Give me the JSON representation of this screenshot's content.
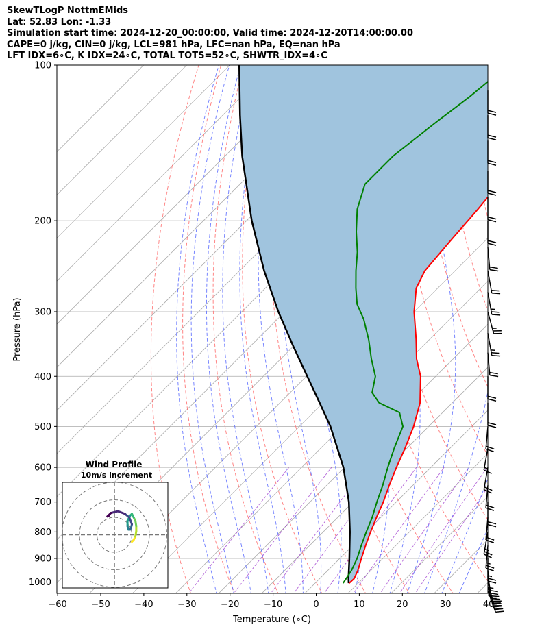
{
  "header": {
    "line1": "SkewTLogP NottmEMids",
    "line2": "Lat: 52.83   Lon: -1.33",
    "line3": "Simulation start time: 2024-12-20_00:00:00, Valid time: 2024-12-20T14:00:00.00",
    "line4": "CAPE=0 j/kg, CIN=0 j/kg, LCL=981 hPa, LFC=nan hPa, EQ=nan hPa",
    "line5": "LFT IDX=6∘C, K IDX=24∘C, TOTAL TOTS=52∘C, SHWTR_IDX=4∘C"
  },
  "chart_data": {
    "type": "skewt",
    "xlabel": "Temperature (∘C)",
    "ylabel": "Pressure (hPa)",
    "xlim": [
      -60,
      40
    ],
    "ylim": [
      1050,
      100
    ],
    "xticks": [
      -60,
      -50,
      -40,
      -30,
      -20,
      -10,
      0,
      10,
      20,
      30,
      40
    ],
    "yticks": [
      100,
      200,
      300,
      400,
      500,
      600,
      700,
      800,
      900,
      1000
    ],
    "colors": {
      "temperature": "#ff0000",
      "dewpoint": "#008000",
      "parcel": "#000000",
      "fill": "#a0c4de",
      "dry_adiabats": "#ff6666",
      "moist_adiabats": "#5566ff",
      "mixing_ratio": "#9933cc",
      "isotherms": "#aaaaaa"
    },
    "temperature_profile": [
      {
        "p": 1005,
        "t": 7.9
      },
      {
        "p": 985,
        "t": 8.0
      },
      {
        "p": 950,
        "t": 7.0
      },
      {
        "p": 900,
        "t": 5.0
      },
      {
        "p": 850,
        "t": 3.0
      },
      {
        "p": 800,
        "t": 1.0
      },
      {
        "p": 750,
        "t": -1.0
      },
      {
        "p": 700,
        "t": -3.0
      },
      {
        "p": 650,
        "t": -5.5
      },
      {
        "p": 600,
        "t": -8.0
      },
      {
        "p": 550,
        "t": -10.5
      },
      {
        "p": 500,
        "t": -13.5
      },
      {
        "p": 450,
        "t": -17.5
      },
      {
        "p": 400,
        "t": -23.5
      },
      {
        "p": 370,
        "t": -28.5
      },
      {
        "p": 340,
        "t": -33.0
      },
      {
        "p": 300,
        "t": -40.0
      },
      {
        "p": 270,
        "t": -45.0
      },
      {
        "p": 250,
        "t": -47.0
      },
      {
        "p": 220,
        "t": -48.0
      },
      {
        "p": 190,
        "t": -49.0
      },
      {
        "p": 160,
        "t": -50.5
      },
      {
        "p": 140,
        "t": -52.0
      },
      {
        "p": 125,
        "t": -54.0
      },
      {
        "p": 110,
        "t": -57.0
      },
      {
        "p": 100,
        "t": -60.0
      }
    ],
    "dewpoint_profile": [
      {
        "p": 1005,
        "t": 6.5
      },
      {
        "p": 950,
        "t": 5.5
      },
      {
        "p": 900,
        "t": 4.0
      },
      {
        "p": 850,
        "t": 2.0
      },
      {
        "p": 800,
        "t": 0.0
      },
      {
        "p": 750,
        "t": -2.0
      },
      {
        "p": 700,
        "t": -4.5
      },
      {
        "p": 650,
        "t": -7.0
      },
      {
        "p": 600,
        "t": -10.0
      },
      {
        "p": 550,
        "t": -13.0
      },
      {
        "p": 500,
        "t": -16.0
      },
      {
        "p": 470,
        "t": -20.0
      },
      {
        "p": 450,
        "t": -27.0
      },
      {
        "p": 430,
        "t": -31.0
      },
      {
        "p": 400,
        "t": -34.0
      },
      {
        "p": 370,
        "t": -39.0
      },
      {
        "p": 340,
        "t": -44.0
      },
      {
        "p": 310,
        "t": -50.0
      },
      {
        "p": 290,
        "t": -55.0
      },
      {
        "p": 270,
        "t": -59.0
      },
      {
        "p": 250,
        "t": -63.0
      },
      {
        "p": 230,
        "t": -67.0
      },
      {
        "p": 210,
        "t": -72.0
      },
      {
        "p": 190,
        "t": -77.0
      },
      {
        "p": 170,
        "t": -81.0
      },
      {
        "p": 150,
        "t": -81.0
      },
      {
        "p": 130,
        "t": -79.0
      },
      {
        "p": 115,
        "t": -77.0
      },
      {
        "p": 100,
        "t": -75.5
      }
    ],
    "parcel_profile": [
      {
        "p": 1005,
        "t": 7.8
      },
      {
        "p": 981,
        "t": 6.5
      },
      {
        "p": 900,
        "t": 2.2
      },
      {
        "p": 800,
        "t": -3.8
      },
      {
        "p": 700,
        "t": -11.0
      },
      {
        "p": 600,
        "t": -20.3
      },
      {
        "p": 500,
        "t": -32.8
      },
      {
        "p": 450,
        "t": -40.8
      },
      {
        "p": 400,
        "t": -49.8
      },
      {
        "p": 350,
        "t": -60.0
      },
      {
        "p": 300,
        "t": -71.5
      },
      {
        "p": 250,
        "t": -84.3
      },
      {
        "p": 200,
        "t": -98.8
      },
      {
        "p": 150,
        "t": -116.0
      },
      {
        "p": 125,
        "t": -126.0
      },
      {
        "p": 100,
        "t": -137.8
      }
    ],
    "wind_barbs": [
      {
        "p": 1040,
        "speed_kt": 35,
        "direction": 160
      },
      {
        "p": 1020,
        "speed_kt": 30,
        "direction": 165
      },
      {
        "p": 1000,
        "speed_kt": 25,
        "direction": 165
      },
      {
        "p": 975,
        "speed_kt": 25,
        "direction": 170
      },
      {
        "p": 950,
        "speed_kt": 25,
        "direction": 175
      },
      {
        "p": 900,
        "speed_kt": 25,
        "direction": 180
      },
      {
        "p": 850,
        "speed_kt": 25,
        "direction": 185
      },
      {
        "p": 800,
        "speed_kt": 25,
        "direction": 190
      },
      {
        "p": 750,
        "speed_kt": 20,
        "direction": 185
      },
      {
        "p": 700,
        "speed_kt": 20,
        "direction": 180
      },
      {
        "p": 650,
        "speed_kt": 20,
        "direction": 185
      },
      {
        "p": 600,
        "speed_kt": 20,
        "direction": 190
      },
      {
        "p": 550,
        "speed_kt": 15,
        "direction": 190
      },
      {
        "p": 500,
        "speed_kt": 20,
        "direction": 185
      },
      {
        "p": 450,
        "speed_kt": 20,
        "direction": 180
      },
      {
        "p": 400,
        "speed_kt": 20,
        "direction": 180
      },
      {
        "p": 360,
        "speed_kt": 20,
        "direction": 175
      },
      {
        "p": 330,
        "speed_kt": 25,
        "direction": 170
      },
      {
        "p": 300,
        "speed_kt": 25,
        "direction": 165
      },
      {
        "p": 275,
        "speed_kt": 25,
        "direction": 170
      },
      {
        "p": 250,
        "speed_kt": 20,
        "direction": 170
      },
      {
        "p": 225,
        "speed_kt": 20,
        "direction": 175
      },
      {
        "p": 200,
        "speed_kt": 20,
        "direction": 180
      },
      {
        "p": 180,
        "speed_kt": 20,
        "direction": 180
      },
      {
        "p": 160,
        "speed_kt": 20,
        "direction": 180
      },
      {
        "p": 140,
        "speed_kt": 20,
        "direction": 180
      },
      {
        "p": 125,
        "speed_kt": 20,
        "direction": 180
      },
      {
        "p": 112,
        "speed_kt": 20,
        "direction": 180
      }
    ],
    "hodograph": {
      "title": "Wind Profile",
      "subtitle": "10m/s increment",
      "ring_values": [
        10,
        20,
        30
      ],
      "points": [
        {
          "u": 10,
          "v": -4
        },
        {
          "u": 11,
          "v": -3
        },
        {
          "u": 12,
          "v": -1
        },
        {
          "u": 12.5,
          "v": 2
        },
        {
          "u": 12.5,
          "v": 5
        },
        {
          "u": 12,
          "v": 8
        },
        {
          "u": 11,
          "v": 10
        },
        {
          "u": 10,
          "v": 12
        },
        {
          "u": 9,
          "v": 11
        },
        {
          "u": 7.5,
          "v": 8
        },
        {
          "u": 7.5,
          "v": 5
        },
        {
          "u": 8,
          "v": 3
        },
        {
          "u": 9,
          "v": 3
        },
        {
          "u": 9.5,
          "v": 4
        },
        {
          "u": 10,
          "v": 6
        },
        {
          "u": 8.5,
          "v": 10
        },
        {
          "u": 6,
          "v": 12
        },
        {
          "u": 2,
          "v": 13.5
        },
        {
          "u": -2,
          "v": 12.5
        },
        {
          "u": -4,
          "v": 10.5
        },
        {
          "u": -3,
          "v": 11
        }
      ]
    }
  }
}
